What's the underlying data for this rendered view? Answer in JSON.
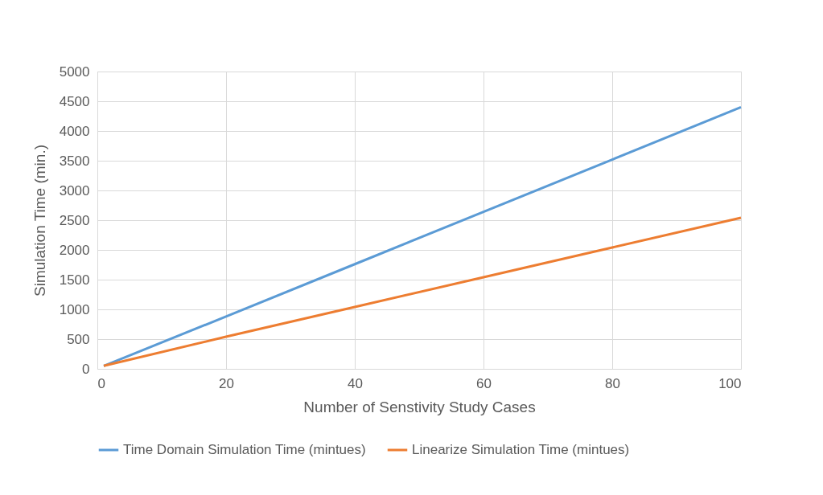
{
  "chart_data": {
    "type": "line",
    "xlabel": "Number of Senstivity Study Cases",
    "ylabel": "Simulation Time (min.)",
    "x": [
      1,
      20,
      40,
      60,
      80,
      100
    ],
    "series": [
      {
        "name": "Time Domain Simulation Time (mintues)",
        "color": "#5b9bd5",
        "values": [
          50,
          880,
          1760,
          2640,
          3520,
          4400
        ]
      },
      {
        "name": "Linearize Simulation Time (mintues)",
        "color": "#ed7d31",
        "values": [
          50,
          540,
          1040,
          1540,
          2040,
          2540
        ]
      }
    ],
    "xlim": [
      0,
      100
    ],
    "xticks": [
      0,
      20,
      40,
      60,
      80,
      100
    ],
    "ylim": [
      0,
      5000
    ],
    "yticks": [
      0,
      500,
      1000,
      1500,
      2000,
      2500,
      3000,
      3500,
      4000,
      4500,
      5000
    ],
    "grid": true,
    "legend": "bottom",
    "marker": "none",
    "line_style": "solid"
  }
}
